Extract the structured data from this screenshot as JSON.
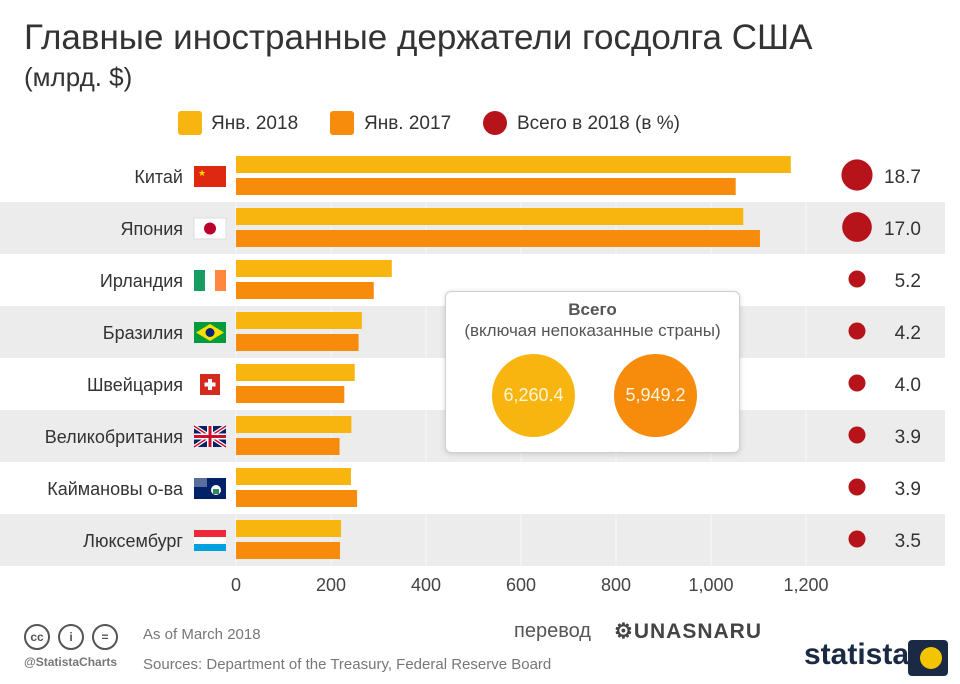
{
  "title": "Главные иностранные держатели госдолга США",
  "subtitle": "(млрд. $)",
  "legend": [
    {
      "label": "Янв. 2018",
      "color": "#f9b50f",
      "shape": "square"
    },
    {
      "label": "Янв. 2017",
      "color": "#f68b0c",
      "shape": "square"
    },
    {
      "label": "Всего в 2018 (в %)",
      "color": "#b7131a",
      "shape": "circle"
    }
  ],
  "chart_data": {
    "type": "bar",
    "orientation": "horizontal",
    "categories": [
      "Китай",
      "Япония",
      "Ирландия",
      "Бразилия",
      "Швейцария",
      "Великобритания",
      "Каймановы о-ва",
      "Люксембург"
    ],
    "flags": [
      "flag-china-icon",
      "flag-japan-icon",
      "flag-ireland-icon",
      "flag-brazil-icon",
      "flag-switzerland-icon",
      "flag-uk-icon",
      "flag-cayman-icon",
      "flag-luxembourg-icon"
    ],
    "series": [
      {
        "name": "Янв. 2018",
        "color": "#f9b50f",
        "values": [
          1168,
          1068,
          328,
          265,
          250,
          243,
          242,
          221
        ]
      },
      {
        "name": "Янв. 2017",
        "color": "#f68b0c",
        "values": [
          1052,
          1103,
          290,
          258,
          228,
          218,
          255,
          219
        ]
      }
    ],
    "share_2018_percent": [
      18.7,
      17.0,
      5.2,
      4.2,
      4.0,
      3.9,
      3.9,
      3.5
    ],
    "share_2018_labels": [
      "18.7",
      "17.0",
      "5.2",
      "4.2",
      "4.0",
      "3.9",
      "3.9",
      "3.5"
    ],
    "share_color": "#b7131a",
    "x_ticks": [
      "0",
      "200",
      "400",
      "600",
      "800",
      "1,000",
      "1,200"
    ],
    "x_tick_values": [
      0,
      200,
      400,
      600,
      800,
      1000,
      1200
    ],
    "xlim": [
      0,
      1200
    ],
    "row_shading": "alternating",
    "legend_position": "top"
  },
  "total_box": {
    "title": "Всего",
    "subtitle": "(включая непоказанные страны)",
    "value_2018": "6,260.4",
    "value_2017": "5,949.2",
    "color_2018": "#f9b50f",
    "color_2017": "#f68b0c"
  },
  "footer": {
    "as_of": "As of March 2018",
    "sources": "Sources: Department of the Treasury, Federal Reserve Board",
    "handle": "@StatistaCharts",
    "translation_label": "перевод",
    "translation_logo": "UNASNARU",
    "brand": "statista"
  }
}
